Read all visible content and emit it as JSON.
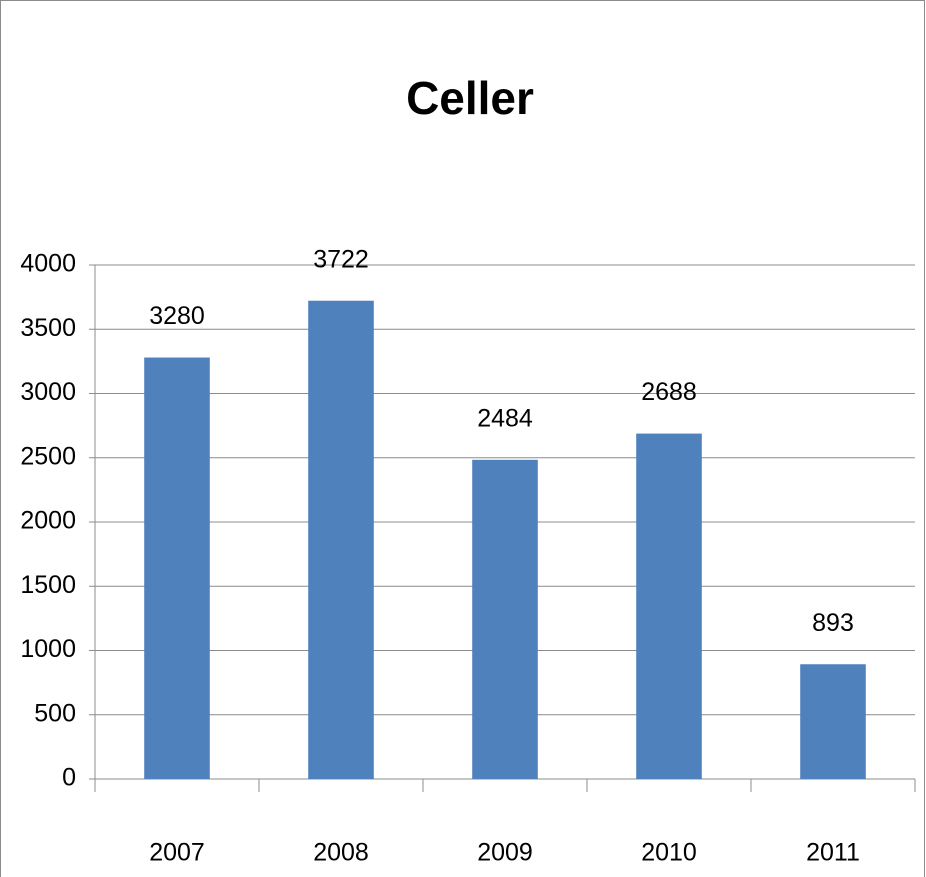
{
  "chart_data": {
    "type": "bar",
    "title": "Celler",
    "categories": [
      "2007",
      "2008",
      "2009",
      "2010",
      "2011"
    ],
    "values": [
      3280,
      3722,
      2484,
      2688,
      893
    ],
    "color": "#4f81bd",
    "ylim": [
      0,
      4000
    ],
    "yticks": [
      0,
      500,
      1000,
      1500,
      2000,
      2500,
      3000,
      3500,
      4000
    ],
    "grid": true
  }
}
